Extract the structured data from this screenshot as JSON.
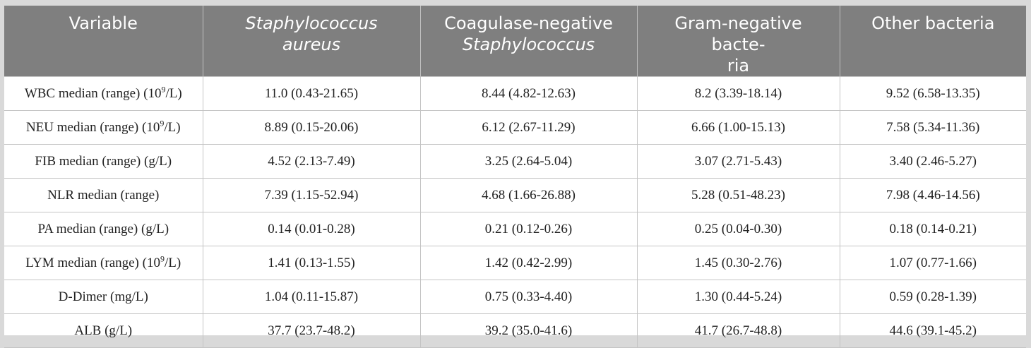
{
  "table": {
    "headers": [
      {
        "line1": "Variable",
        "line2": ""
      },
      {
        "line1": "Staphylococcus",
        "line2": "aureus"
      },
      {
        "line1": "Coagulase-negative",
        "line2": "Staphylococcus"
      },
      {
        "line1": "Gram-negative bacte-",
        "line2": "ria"
      },
      {
        "line1": "Other bacteria",
        "line2": ""
      }
    ],
    "rows": [
      {
        "label_pre": "WBC median (range) (10",
        "label_sup": "9",
        "label_post": "/L)",
        "values": [
          "11.0 (0.43-21.65)",
          "8.44 (4.82-12.63)",
          "8.2 (3.39-18.14)",
          "9.52 (6.58-13.35)"
        ]
      },
      {
        "label_pre": "NEU median (range) (10",
        "label_sup": "9",
        "label_post": "/L)",
        "values": [
          "8.89 (0.15-20.06)",
          "6.12 (2.67-11.29)",
          "6.66 (1.00-15.13)",
          "7.58 (5.34-11.36)"
        ]
      },
      {
        "label_pre": "FIB median (range) (g/L)",
        "label_sup": "",
        "label_post": "",
        "values": [
          "4.52 (2.13-7.49)",
          "3.25 (2.64-5.04)",
          "3.07 (2.71-5.43)",
          "3.40 (2.46-5.27)"
        ]
      },
      {
        "label_pre": "NLR median (range)",
        "label_sup": "",
        "label_post": "",
        "values": [
          "7.39 (1.15-52.94)",
          "4.68 (1.66-26.88)",
          "5.28 (0.51-48.23)",
          "7.98 (4.46-14.56)"
        ]
      },
      {
        "label_pre": "PA median (range) (g/L)",
        "label_sup": "",
        "label_post": "",
        "values": [
          "0.14 (0.01-0.28)",
          "0.21 (0.12-0.26)",
          "0.25 (0.04-0.30)",
          "0.18 (0.14-0.21)"
        ]
      },
      {
        "label_pre": "LYM median (range) (10",
        "label_sup": "9",
        "label_post": "/L)",
        "values": [
          "1.41 (0.13-1.55)",
          "1.42 (0.42-2.99)",
          "1.45 (0.30-2.76)",
          "1.07 (0.77-1.66)"
        ]
      },
      {
        "label_pre": "D-Dimer (mg/L)",
        "label_sup": "",
        "label_post": "",
        "values": [
          "1.04 (0.11-15.87)",
          "0.75 (0.33-4.40)",
          "1.30 (0.44-5.24)",
          "0.59 (0.28-1.39)"
        ]
      },
      {
        "label_pre": "ALB (g/L)",
        "label_sup": "",
        "label_post": "",
        "values": [
          "37.7 (23.7-48.2)",
          "39.2 (35.0-41.6)",
          "41.7 (26.7-48.8)",
          "44.6 (39.1-45.2)"
        ]
      }
    ]
  },
  "colors": {
    "header_bg": "#7f7f7f",
    "header_text": "#ffffff",
    "page_bg": "#d9d9d9",
    "grid": "#c4c4c4"
  }
}
